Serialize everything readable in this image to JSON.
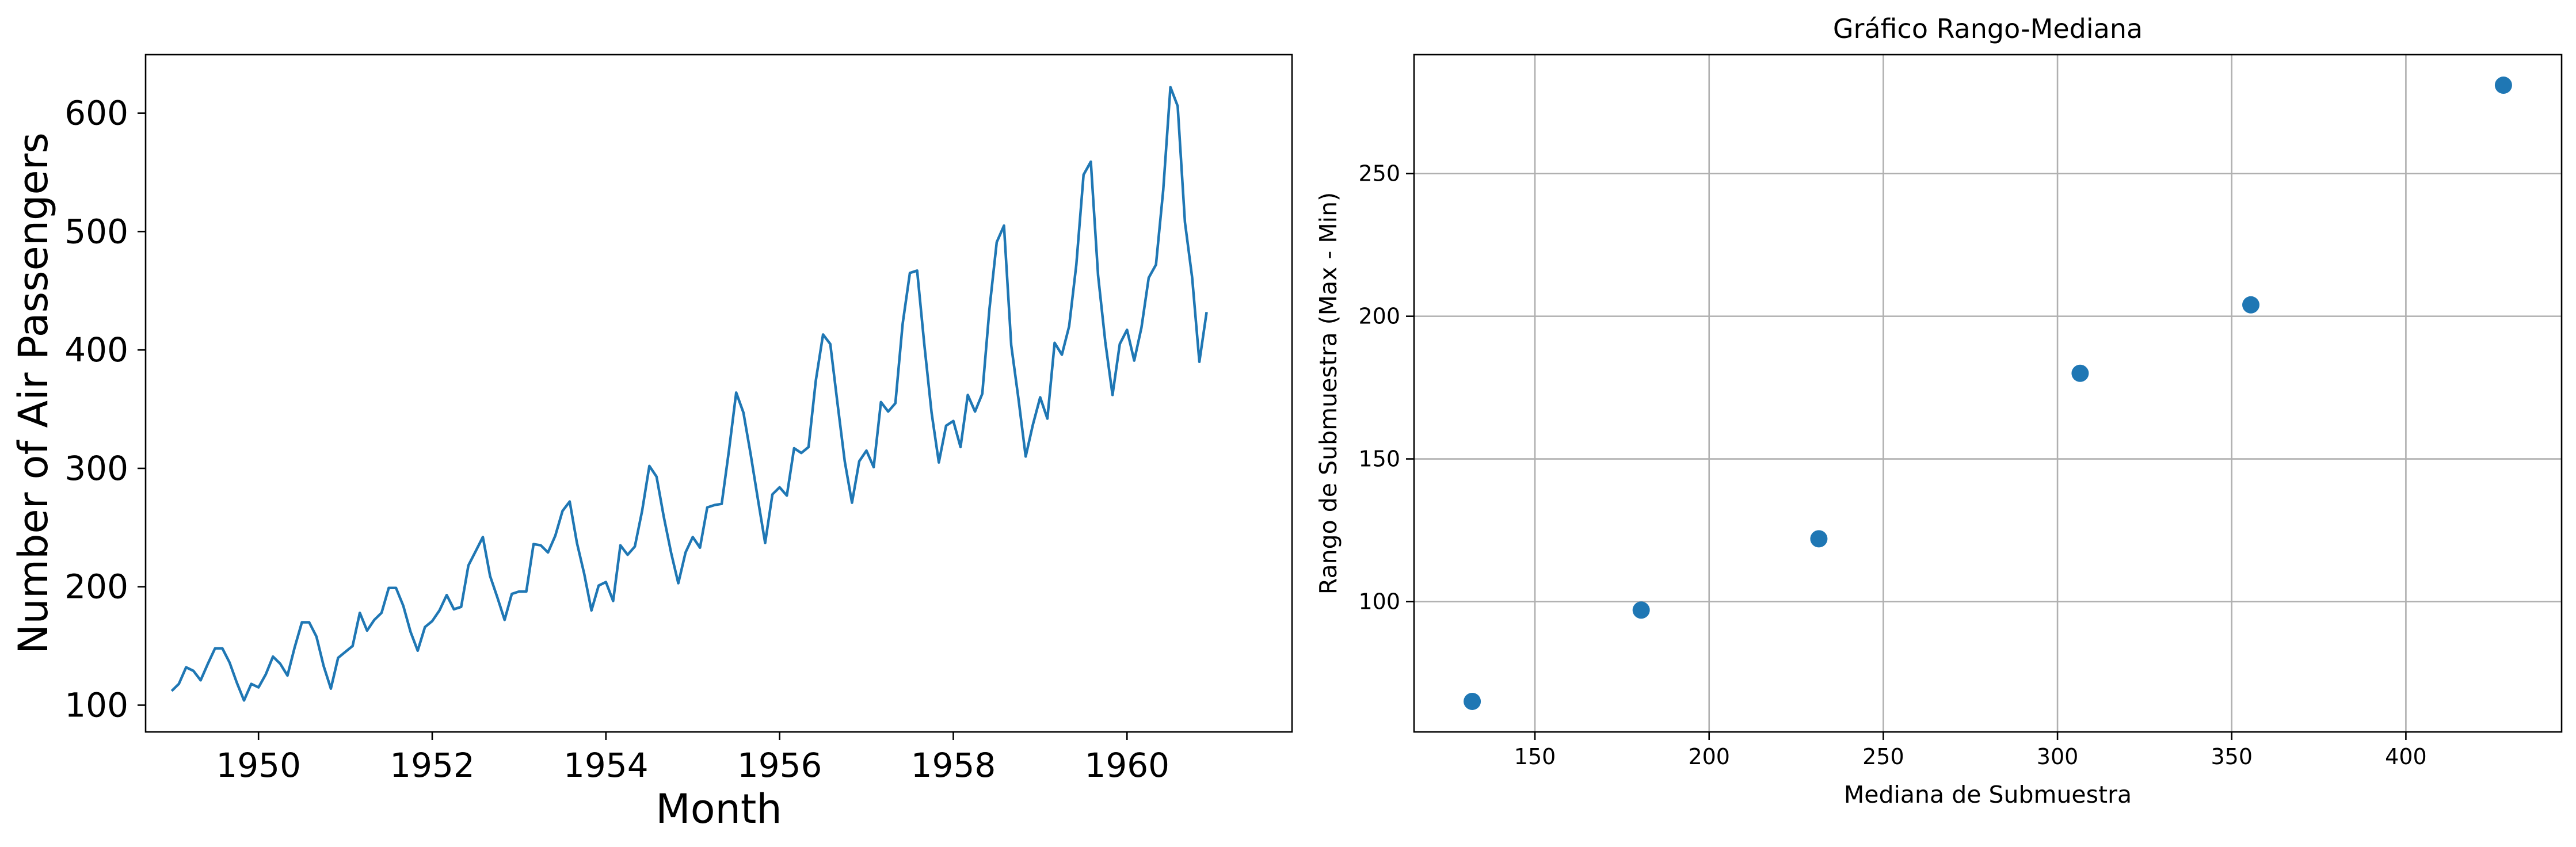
{
  "chart_data": [
    {
      "type": "line",
      "title": "",
      "xlabel": "Month",
      "ylabel": "Number of Air Passengers",
      "xlim": [
        1948.7,
        1961.9
      ],
      "ylim": [
        77.4,
        649.4
      ],
      "xticks": [
        1950,
        1952,
        1954,
        1956,
        1958,
        1960
      ],
      "xtick_labels": [
        "1950",
        "1952",
        "1954",
        "1956",
        "1958",
        "1960"
      ],
      "yticks": [
        100,
        200,
        300,
        400,
        500,
        600
      ],
      "ytick_labels": [
        "100",
        "200",
        "300",
        "400",
        "500",
        "600"
      ],
      "grid": false,
      "color": "#1f77b4",
      "series": [
        {
          "x_start": "1949-01",
          "x_end": "1960-12",
          "frequency": "monthly",
          "values": [
            112,
            118,
            132,
            129,
            121,
            135,
            148,
            148,
            136,
            119,
            104,
            118,
            115,
            126,
            141,
            135,
            125,
            149,
            170,
            170,
            158,
            133,
            114,
            140,
            145,
            150,
            178,
            163,
            172,
            178,
            199,
            199,
            184,
            162,
            146,
            166,
            171,
            180,
            193,
            181,
            183,
            218,
            230,
            242,
            209,
            191,
            172,
            194,
            196,
            196,
            236,
            235,
            229,
            243,
            264,
            272,
            237,
            211,
            180,
            201,
            204,
            188,
            235,
            227,
            234,
            264,
            302,
            293,
            259,
            229,
            203,
            229,
            242,
            233,
            267,
            269,
            270,
            315,
            364,
            347,
            312,
            274,
            237,
            278,
            284,
            277,
            317,
            313,
            318,
            374,
            413,
            405,
            355,
            306,
            271,
            306,
            315,
            301,
            356,
            348,
            355,
            422,
            465,
            467,
            404,
            347,
            305,
            336,
            340,
            318,
            362,
            348,
            363,
            435,
            491,
            505,
            404,
            359,
            310,
            337,
            360,
            342,
            406,
            396,
            420,
            472,
            548,
            559,
            463,
            407,
            362,
            405,
            417,
            391,
            419,
            461,
            472,
            535,
            622,
            606,
            508,
            461,
            390,
            432
          ]
        }
      ]
    },
    {
      "type": "scatter",
      "title": "Gráfico Rango-Mediana",
      "xlabel": "Mediana de Submuestra",
      "ylabel": "Rango de Submuestra (Max - Min)",
      "xlim": [
        115.3,
        444.7
      ],
      "ylim": [
        54.3,
        291.7
      ],
      "xticks": [
        150,
        200,
        250,
        300,
        350,
        400
      ],
      "xtick_labels": [
        "150",
        "200",
        "250",
        "300",
        "350",
        "400"
      ],
      "yticks": [
        100,
        150,
        200,
        250
      ],
      "ytick_labels": [
        "100",
        "150",
        "200",
        "250"
      ],
      "grid": true,
      "color": "#1f77b4",
      "points": [
        {
          "x": 132.0,
          "y": 65
        },
        {
          "x": 180.5,
          "y": 97
        },
        {
          "x": 231.5,
          "y": 122
        },
        {
          "x": 306.5,
          "y": 180
        },
        {
          "x": 355.5,
          "y": 204
        },
        {
          "x": 428.0,
          "y": 281
        }
      ]
    }
  ]
}
